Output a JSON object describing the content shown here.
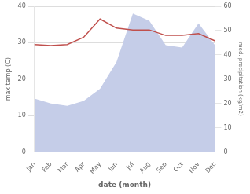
{
  "chart_data": {
    "type": "line",
    "xlabel": "date (month)",
    "ylabel": "max temp (C)",
    "y2label": "med. precipitation (kg/m2)",
    "categories": [
      "Jan",
      "Feb",
      "Mar",
      "Apr",
      "May",
      "Jun",
      "Jul",
      "Aug",
      "Sep",
      "Oct",
      "Nov",
      "Dec"
    ],
    "series": [
      {
        "type": "area",
        "axis": "y2",
        "color": "#c5cde8",
        "values": [
          22,
          20,
          19,
          21,
          26,
          37,
          57,
          54,
          44,
          43,
          53,
          44
        ]
      },
      {
        "type": "line",
        "color": "#c0504d",
        "values": [
          29.5,
          29.2,
          29.5,
          31.5,
          36.5,
          34.0,
          33.5,
          33.5,
          32.0,
          32.0,
          32.5,
          30.5
        ]
      }
    ],
    "ylim": [
      0,
      40
    ],
    "yticks": [
      0,
      10,
      20,
      30,
      40
    ],
    "y2lim": [
      0,
      60
    ],
    "y2ticks": [
      0,
      10,
      20,
      30,
      40,
      50,
      60
    ],
    "grid": true
  }
}
